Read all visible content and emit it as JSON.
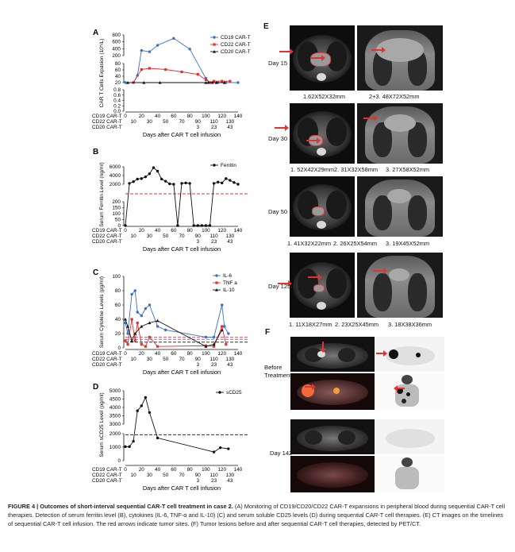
{
  "panels": {
    "A": "A",
    "B": "B",
    "C": "C",
    "D": "D",
    "E": "E",
    "F": "F"
  },
  "axis_rows": {
    "cd19": "CD19 CAR-T",
    "cd22": "CD22 CAR-T",
    "cd20": "CD20 CAR-T",
    "cd19_ticks": [
      "0",
      "20",
      "40",
      "60",
      "80",
      "100",
      "120",
      "140"
    ],
    "cd22_ticks": [
      "10",
      "30",
      "50",
      "70",
      "90",
      "110",
      "130"
    ],
    "cd20_ticks_A": [
      "3",
      "23",
      "43"
    ],
    "cd20_ticks_B": [
      "3",
      "23",
      "43"
    ],
    "cd20_ticks_C": [
      "3",
      "23",
      "43"
    ],
    "cd20_ticks_D": [
      "3",
      "23",
      "43"
    ],
    "xlabel": "Days after CAR T cell infusion"
  },
  "chart_data": [
    {
      "panel": "A",
      "type": "line",
      "ylabel": "CAR T Cells Expasion (10⁵/L)",
      "segments": [
        {
          "ylim": [
            200,
            800
          ],
          "ticks": [
            "800",
            "600",
            "400",
            "200"
          ]
        },
        {
          "ylim": [
            0,
            80
          ],
          "ticks": [
            "80",
            "60",
            "40",
            "20"
          ]
        },
        {
          "ylim": [
            0,
            0.8
          ],
          "ticks": [
            "0.8",
            "0.6",
            "0.4",
            "0.2",
            "0.0"
          ]
        }
      ],
      "series": [
        {
          "name": "CD19 CAR-T",
          "color": "#3b6fc4",
          "marker": "circle",
          "x": [
            0,
            10,
            15,
            20,
            30,
            40,
            60,
            80,
            100,
            105,
            115,
            125,
            140
          ],
          "y": [
            0.0,
            0.6,
            30,
            350,
            310,
            500,
            700,
            390,
            18,
            0.5,
            0.3,
            0.2,
            0.05
          ]
        },
        {
          "name": "CD22 CAR-T",
          "color": "#e53030",
          "marker": "square",
          "x": [
            10,
            20,
            30,
            50,
            70,
            90,
            100,
            105,
            110,
            120,
            130
          ],
          "y": [
            0.0,
            55,
            60,
            55,
            45,
            35,
            12,
            0.1,
            6,
            6,
            6
          ]
        },
        {
          "name": "CD20 CAR-T",
          "color": "#111111",
          "marker": "triangle",
          "x": [
            3,
            23,
            43,
            100,
            103,
            108,
            113,
            123
          ],
          "y": [
            0.0,
            0.0,
            0.0,
            0.05,
            0.2,
            0.35,
            0.1,
            0.05
          ]
        }
      ]
    },
    {
      "panel": "B",
      "type": "line",
      "ylabel": "Serum Ferritin Level (ng/ml)",
      "segments": [
        {
          "ylim": [
            2000,
            6000
          ],
          "ticks": [
            "6000",
            "4000",
            "2000"
          ]
        },
        {
          "ylim": [
            0,
            200
          ],
          "ticks": [
            "200",
            "150",
            "100",
            "50",
            "0"
          ]
        }
      ],
      "reference_line": {
        "value": 230,
        "style": "dashed",
        "color": "#e53030"
      },
      "series": [
        {
          "name": "Ferritin",
          "color": "#111111",
          "marker": "circle",
          "x": [
            0,
            5,
            10,
            15,
            20,
            25,
            30,
            35,
            40,
            45,
            50,
            55,
            60,
            65,
            70,
            75,
            80,
            85,
            90,
            95,
            100,
            105,
            110,
            115,
            120,
            125,
            130,
            135,
            140
          ],
          "y": [
            1800,
            2200,
            2600,
            3200,
            3300,
            3700,
            4400,
            5800,
            5000,
            3200,
            2700,
            2100,
            2000,
            1900,
            2200,
            2300,
            2200,
            1900,
            1800,
            1600,
            1500,
            1700,
            2200,
            2500,
            2300,
            3300,
            2900,
            2400,
            2000
          ]
        }
      ]
    },
    {
      "panel": "C",
      "type": "line",
      "ylabel": "Serum Cytokine Levels (pg/ml)",
      "ylim": [
        0,
        100
      ],
      "ticks": [
        "100",
        "80",
        "60",
        "40",
        "20",
        "0"
      ],
      "reference_lines": [
        {
          "value": 15,
          "color": "#e53030"
        },
        {
          "value": 12,
          "color": "#3b6fc4"
        },
        {
          "value": 8,
          "color": "#111111"
        }
      ],
      "series": [
        {
          "name": "IL-6",
          "color": "#3b6fc4",
          "marker": "circle",
          "x": [
            0,
            3,
            8,
            12,
            15,
            20,
            25,
            30,
            40,
            50,
            100,
            110,
            120,
            123,
            128
          ],
          "y": [
            35,
            20,
            75,
            80,
            50,
            45,
            55,
            60,
            30,
            25,
            15,
            15,
            60,
            30,
            20
          ]
        },
        {
          "name": "TNF a",
          "color": "#e53030",
          "marker": "square",
          "x": [
            0,
            3,
            8,
            12,
            15,
            20,
            25,
            30,
            40,
            100,
            110,
            120,
            125
          ],
          "y": [
            10,
            5,
            40,
            10,
            35,
            5,
            2,
            15,
            2,
            3,
            2,
            30,
            5
          ]
        },
        {
          "name": "IL-10",
          "color": "#111111",
          "marker": "triangle",
          "x": [
            0,
            3,
            8,
            12,
            20,
            30,
            40,
            100,
            110,
            120
          ],
          "y": [
            40,
            30,
            10,
            20,
            30,
            35,
            38,
            2,
            5,
            25
          ]
        }
      ]
    },
    {
      "panel": "D",
      "type": "line",
      "ylabel": "Serum sCD25 Level (pg/ml)",
      "segments": [
        {
          "ylim": [
            3000,
            5000
          ],
          "ticks": [
            "5000",
            "4500",
            "4000",
            "3500",
            "3000"
          ]
        },
        {
          "ylim": [
            0,
            2500
          ],
          "ticks": [
            "2000",
            "1000",
            "0"
          ]
        }
      ],
      "reference_line": {
        "value": 2400,
        "style": "dashed",
        "color": "#111111"
      },
      "series": [
        {
          "name": "sCD25",
          "color": "#111111",
          "marker": "circle",
          "x": [
            0,
            5,
            10,
            15,
            20,
            25,
            30,
            40,
            110,
            118,
            128
          ],
          "y": [
            1300,
            1300,
            1800,
            3800,
            4100,
            4600,
            3700,
            2100,
            800,
            1200,
            1100
          ]
        }
      ]
    }
  ],
  "panel_E": {
    "rows": [
      {
        "day": "Day 15",
        "measures": [
          "1.62X52X32mm",
          "2+3. 48X72X52mm"
        ]
      },
      {
        "day": "Day 30",
        "measures": [
          "1. 52X42X29mm",
          "2. 31X32X58mm",
          "3. 27X58X52mm"
        ]
      },
      {
        "day": "Day 50",
        "measures": [
          "1. 41X32X22mm",
          "2. 26X25X54mm",
          "3. 19X45X52mm"
        ]
      },
      {
        "day": "Day 125",
        "measures": [
          "1. 11X18X27mm",
          "2. 23X25X45mm",
          "3. 18X38X36mm"
        ]
      }
    ]
  },
  "panel_F": {
    "rows": [
      {
        "label": "Before Treatment"
      },
      {
        "label": "Day 142"
      }
    ]
  },
  "caption": {
    "title": "FIGURE 4 | Outcomes of short-interval sequential CAR-T cell treatment in case 2.",
    "body": " (A) Monitoring of CD19/CD20/CD22 CAR-T expansions in peripheral blood during sequential CAR-T cell therapies. Detection of serum ferritin level (B), cytokines (IL-6, TNF-α and IL-10) (C) and serum soluble CD25 levels (D) during sequential CAR-T cell therapies. (E) CT images on the timelines of sequential CAR-T cell infusion. The red arrows indicate tumor sites. (F) Tumor lesions before and after sequential CAR-T cell therapies, detected by PET/CT."
  }
}
